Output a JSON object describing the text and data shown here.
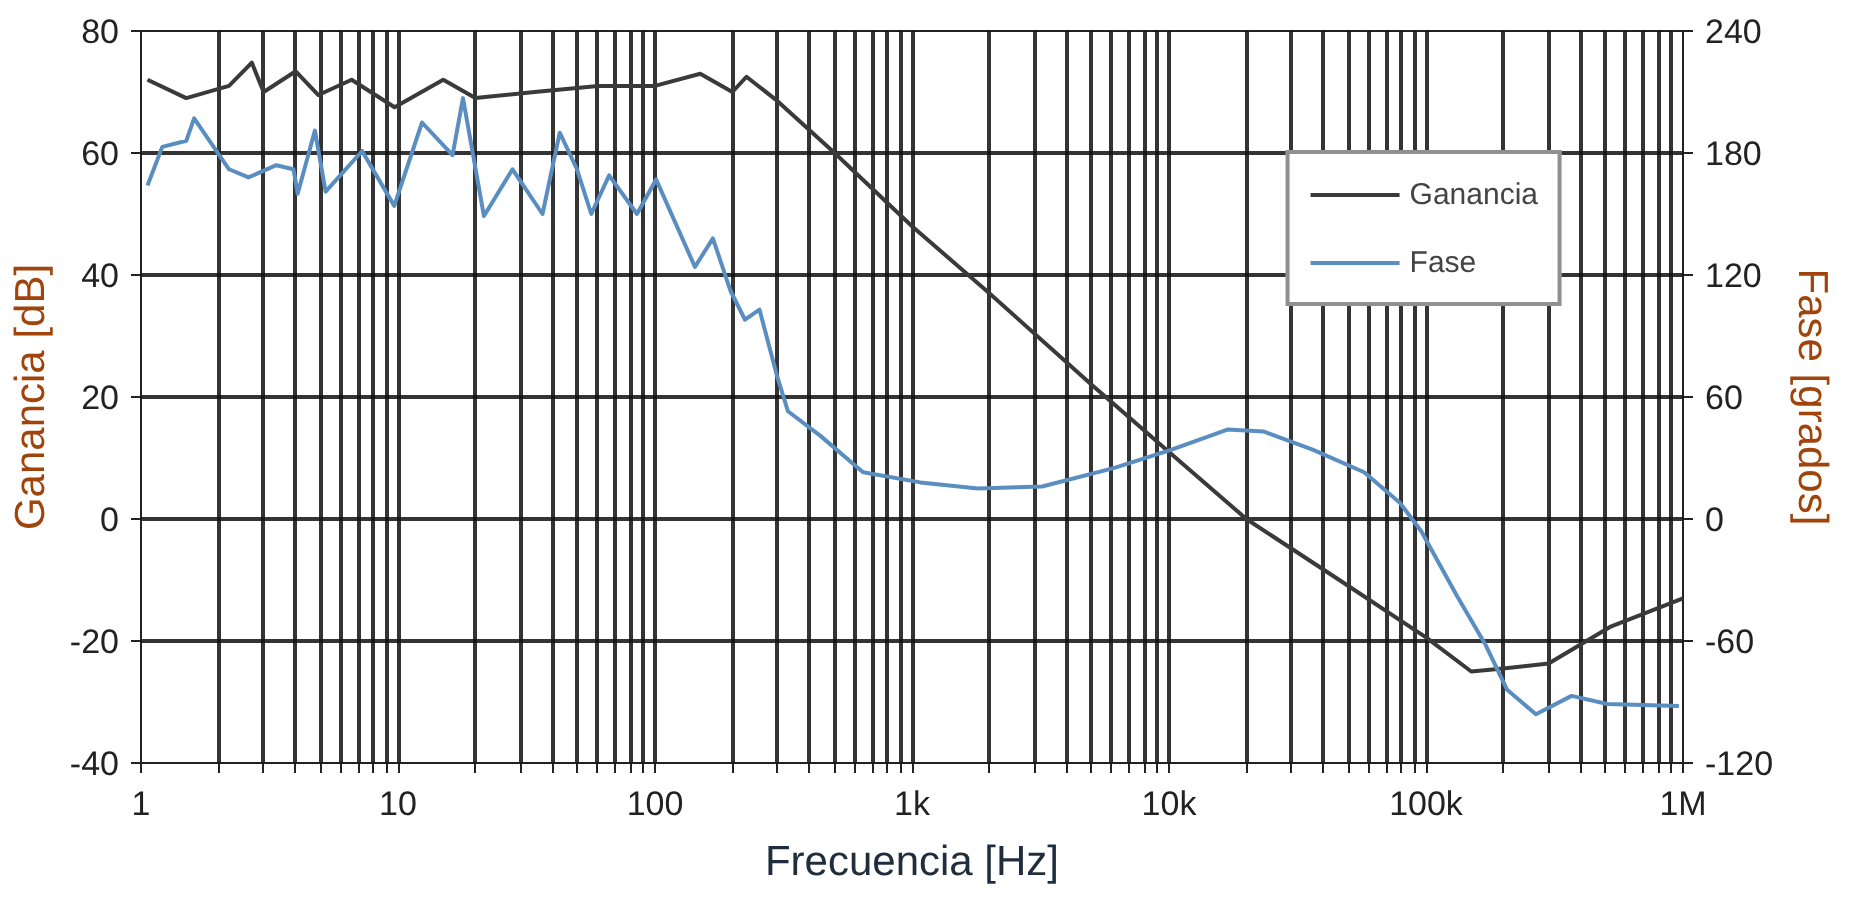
{
  "chart_data": {
    "type": "line",
    "xlabel": "Frecuencia [Hz]",
    "ylabel": "Ganancia [dB]",
    "y2label": "Fase [grados]",
    "log": "x",
    "grid": true,
    "legend": "top right",
    "marker": "none",
    "line_style": "solid",
    "xlim": [
      1,
      1000000
    ],
    "ylim": [
      -40,
      80
    ],
    "y2lim": [
      -120,
      240
    ],
    "xticks": [
      1,
      {
        "value": 2,
        "label": null
      },
      {
        "value": 3,
        "label": null
      },
      {
        "value": 4,
        "label": null
      },
      {
        "value": 5,
        "label": null
      },
      {
        "value": 6,
        "label": null
      },
      {
        "value": 7,
        "label": null
      },
      {
        "value": 8,
        "label": null
      },
      {
        "value": 9,
        "label": null
      },
      10,
      {
        "value": 20,
        "label": null
      },
      {
        "value": 30,
        "label": null
      },
      {
        "value": 40,
        "label": null
      },
      {
        "value": 50,
        "label": null
      },
      {
        "value": 60,
        "label": null
      },
      {
        "value": 70,
        "label": null
      },
      {
        "value": 80,
        "label": null
      },
      {
        "value": 90,
        "label": null
      },
      100,
      {
        "value": 200,
        "label": null
      },
      {
        "value": 300,
        "label": null
      },
      {
        "value": 400,
        "label": null
      },
      {
        "value": 500,
        "label": null
      },
      {
        "value": 600,
        "label": null
      },
      {
        "value": 700,
        "label": null
      },
      {
        "value": 800,
        "label": null
      },
      {
        "value": 900,
        "label": null
      },
      {
        "value": 1000,
        "label": "1k"
      },
      {
        "value": 2000,
        "label": null
      },
      {
        "value": 3000,
        "label": null
      },
      {
        "value": 4000,
        "label": null
      },
      {
        "value": 5000,
        "label": null
      },
      {
        "value": 6000,
        "label": null
      },
      {
        "value": 7000,
        "label": null
      },
      {
        "value": 8000,
        "label": null
      },
      {
        "value": 9000,
        "label": null
      },
      {
        "value": 10000,
        "label": "10k"
      },
      {
        "value": 20000,
        "label": null
      },
      {
        "value": 30000,
        "label": null
      },
      {
        "value": 40000,
        "label": null
      },
      {
        "value": 50000,
        "label": null
      },
      {
        "value": 60000,
        "label": null
      },
      {
        "value": 70000,
        "label": null
      },
      {
        "value": 80000,
        "label": null
      },
      {
        "value": 90000,
        "label": null
      },
      {
        "value": 100000,
        "label": "100k"
      },
      {
        "value": 200000,
        "label": null
      },
      {
        "value": 300000,
        "label": null
      },
      {
        "value": 400000,
        "label": null
      },
      {
        "value": 500000,
        "label": null
      },
      {
        "value": 600000,
        "label": null
      },
      {
        "value": 700000,
        "label": null
      },
      {
        "value": 800000,
        "label": null
      },
      {
        "value": 900000,
        "label": null
      },
      {
        "value": 1000000,
        "label": "1M"
      }
    ],
    "yticks": [
      -40,
      -20,
      0,
      20,
      40,
      60,
      80
    ],
    "y2ticks": [
      -120,
      -60,
      0,
      60,
      120,
      180,
      240
    ],
    "series": [
      {
        "name": "Ganancia",
        "color": "#3a3a3a",
        "x": [
          1.06,
          1.5,
          2.2,
          2.7,
          3.0,
          4.0,
          4.9,
          6.6,
          9.7,
          15,
          20,
          34,
          60,
          100,
          150,
          200,
          227,
          300,
          500,
          1000,
          2000,
          5000,
          10000,
          20000,
          46000,
          100000,
          150000,
          200000,
          300000,
          520000,
          1000000
        ],
        "values": [
          72,
          69,
          71,
          74.8,
          70,
          73.4,
          69.5,
          72,
          67.5,
          72,
          69,
          70,
          71,
          71,
          73,
          70,
          72.5,
          68.5,
          60,
          48,
          37,
          22,
          11,
          0,
          -10,
          -19.4,
          -25,
          -24.5,
          -23.7,
          -17.7,
          -13
        ]
      },
      {
        "name": "Fase",
        "color": "#5b8ec0",
        "axis": "y2",
        "x": [
          1.06,
          1.21,
          1.5,
          1.61,
          2.2,
          2.62,
          3.36,
          3.92,
          4.07,
          4.75,
          5.23,
          7.25,
          9.67,
          12.4,
          16.3,
          17.9,
          21.6,
          27.9,
          36.5,
          42.6,
          49.7,
          56.5,
          66.3,
          85.1,
          101,
          143,
          168,
          197,
          224,
          255,
          299,
          329,
          439,
          645,
          1078,
          1802,
          3208,
          6088,
          10174,
          16875,
          23400,
          36420,
          57460,
          79100,
          95850,
          132200,
          170700,
          206900,
          267700,
          368500,
          508000,
          964000
        ],
        "values": [
          164,
          183,
          186,
          197,
          172,
          168,
          174,
          172,
          160,
          191,
          161,
          181,
          154,
          195,
          179,
          207,
          149,
          172,
          150,
          190,
          172,
          150,
          169,
          150,
          167,
          124,
          138,
          112,
          98,
          103,
          70,
          53,
          41,
          23,
          18,
          15,
          16,
          25,
          34,
          44,
          43,
          34,
          23,
          8,
          -6,
          -38,
          -62,
          -84,
          -96,
          -87,
          -91,
          -92
        ]
      }
    ]
  }
}
